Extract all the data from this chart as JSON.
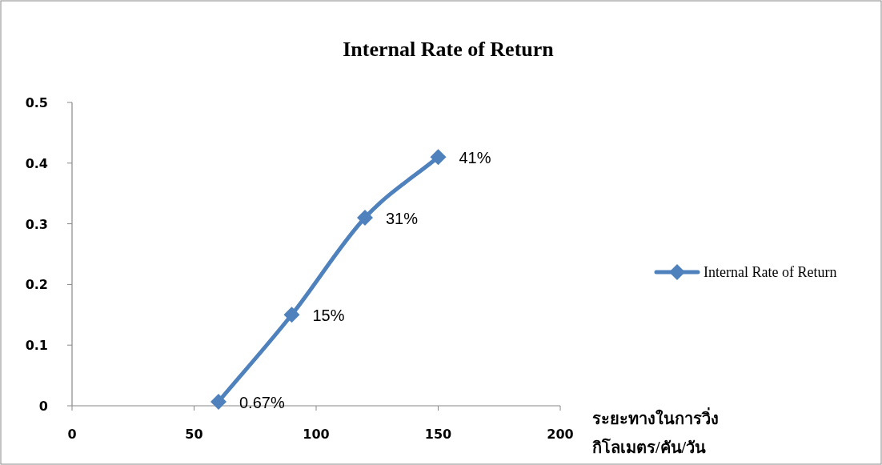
{
  "chart_data": {
    "type": "line",
    "title": "Internal Rate of Return",
    "xlabel": "ระยะทางในการวิ่ง\nกิโลเมตร/คัน/วัน",
    "x": [
      60,
      90,
      120,
      150
    ],
    "series": [
      {
        "name": "Internal Rate of Return",
        "color": "#4f81bd",
        "values": [
          0.0067,
          0.15,
          0.31,
          0.41
        ],
        "value_labels": [
          "0.67%",
          "15%",
          "31%",
          "41%"
        ]
      }
    ],
    "xlim": [
      0,
      200
    ],
    "xticks": [
      0,
      50,
      100,
      150,
      200
    ],
    "ylim": [
      0,
      0.5
    ],
    "yticks": [
      0,
      0.1,
      0.2,
      0.3,
      0.4,
      0.5
    ],
    "marker": "diamond",
    "line_style": "solid",
    "legend": "right",
    "grid": false
  }
}
